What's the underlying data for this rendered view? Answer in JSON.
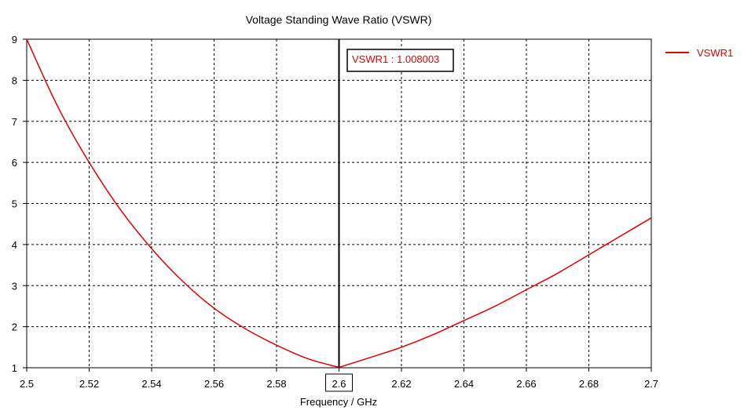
{
  "chart_data": {
    "type": "line",
    "title": "Voltage Standing Wave Ratio (VSWR)",
    "xlabel": "Frequency / GHz",
    "ylabel": "",
    "xlim": [
      2.5,
      2.7
    ],
    "ylim": [
      1,
      9
    ],
    "xticks": [
      2.5,
      2.52,
      2.54,
      2.56,
      2.58,
      2.6,
      2.62,
      2.64,
      2.66,
      2.68,
      2.7
    ],
    "xtick_labels": [
      "2.5",
      "2.52",
      "2.54",
      "2.56",
      "2.58",
      "2.6",
      "2.62",
      "2.64",
      "2.66",
      "2.68",
      "2.7"
    ],
    "yticks": [
      1,
      2,
      3,
      4,
      5,
      6,
      7,
      8,
      9
    ],
    "ytick_labels": [
      "1",
      "2",
      "3",
      "4",
      "5",
      "6",
      "7",
      "8",
      "9"
    ],
    "grid": true,
    "legend_position": "right",
    "series": [
      {
        "name": "VSWR1",
        "color": "#e00000",
        "x": [
          2.5,
          2.51,
          2.52,
          2.53,
          2.54,
          2.55,
          2.56,
          2.57,
          2.58,
          2.59,
          2.6,
          2.61,
          2.62,
          2.63,
          2.64,
          2.65,
          2.66,
          2.67,
          2.68,
          2.69,
          2.7
        ],
        "y": [
          9.0,
          7.35,
          6.0,
          4.85,
          3.9,
          3.1,
          2.45,
          1.95,
          1.55,
          1.22,
          1.008,
          1.25,
          1.5,
          1.8,
          2.15,
          2.5,
          2.9,
          3.3,
          3.75,
          4.2,
          4.65
        ]
      }
    ],
    "marker": {
      "x": 2.6,
      "x_label": "2.6",
      "label": "VSWR1 : 1.008003"
    }
  }
}
